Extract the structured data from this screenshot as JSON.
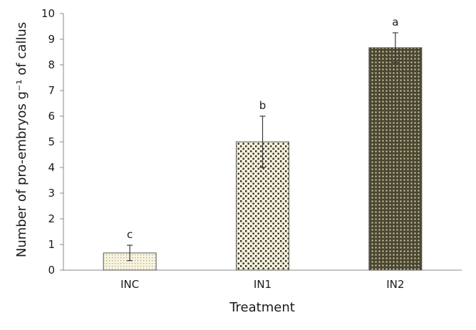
{
  "chart_data": {
    "type": "bar",
    "title": "",
    "xlabel": "Treatment",
    "ylabel": "Number of pro-embryos g⁻¹ of callus",
    "ylim": [
      0,
      10
    ],
    "yticks": [
      0,
      1,
      2,
      3,
      4,
      5,
      6,
      7,
      8,
      9,
      10
    ],
    "grid": false,
    "legend": "none",
    "categories": [
      "INC",
      "IN1",
      "IN2"
    ],
    "values": [
      0.67,
      5.0,
      8.67
    ],
    "error": [
      0.3,
      1.0,
      0.58
    ],
    "significance_letters": [
      "c",
      "b",
      "a"
    ],
    "bar_patterns": [
      "fine-dots",
      "medium-dots",
      "dense-grid"
    ]
  }
}
